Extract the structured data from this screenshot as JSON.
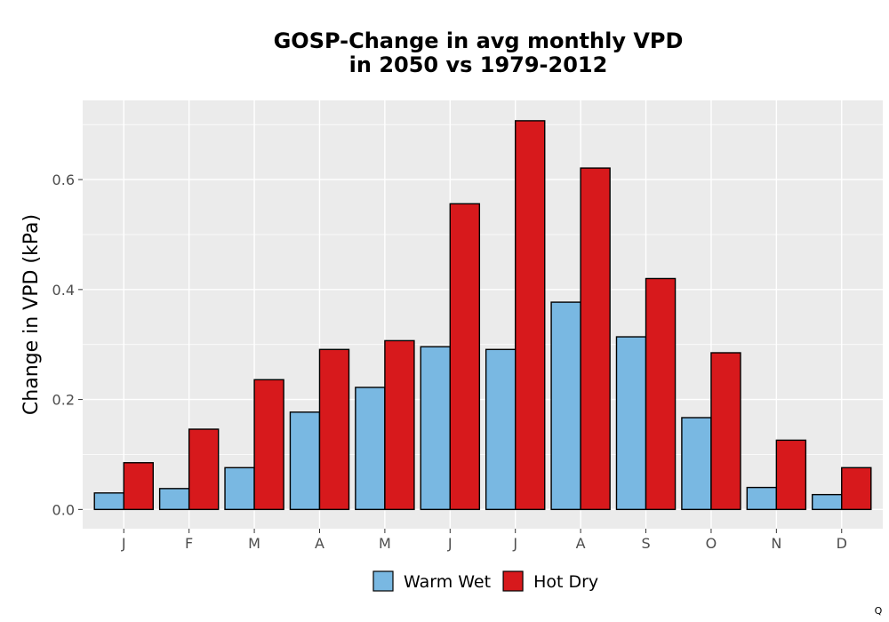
{
  "chart_data": {
    "type": "bar",
    "title_lines": [
      "GOSP-Change in avg monthly VPD",
      "in 2050 vs 1979-2012"
    ],
    "xlabel": "",
    "ylabel": "Change in VPD (kPa)",
    "categories": [
      "J",
      "F",
      "M",
      "A",
      "M",
      "J",
      "J",
      "A",
      "S",
      "O",
      "N",
      "D"
    ],
    "series": [
      {
        "name": "Warm Wet",
        "color": "#79b8e2",
        "values": [
          0.03,
          0.038,
          0.076,
          0.177,
          0.222,
          0.296,
          0.291,
          0.377,
          0.314,
          0.167,
          0.04,
          0.027
        ]
      },
      {
        "name": "Hot Dry",
        "color": "#d7191c",
        "values": [
          0.085,
          0.146,
          0.236,
          0.291,
          0.307,
          0.556,
          0.707,
          0.621,
          0.42,
          0.285,
          0.126,
          0.076
        ]
      }
    ],
    "ylim": [
      -0.035,
      0.744
    ],
    "yticks": [
      0.0,
      0.2,
      0.4,
      0.6
    ],
    "ytick_labels": [
      "0.0",
      "0.2",
      "0.4",
      "0.6"
    ],
    "grid": true,
    "panel_background": "#ebebeb",
    "legend_position": "bottom",
    "corner_mark": "Q"
  }
}
